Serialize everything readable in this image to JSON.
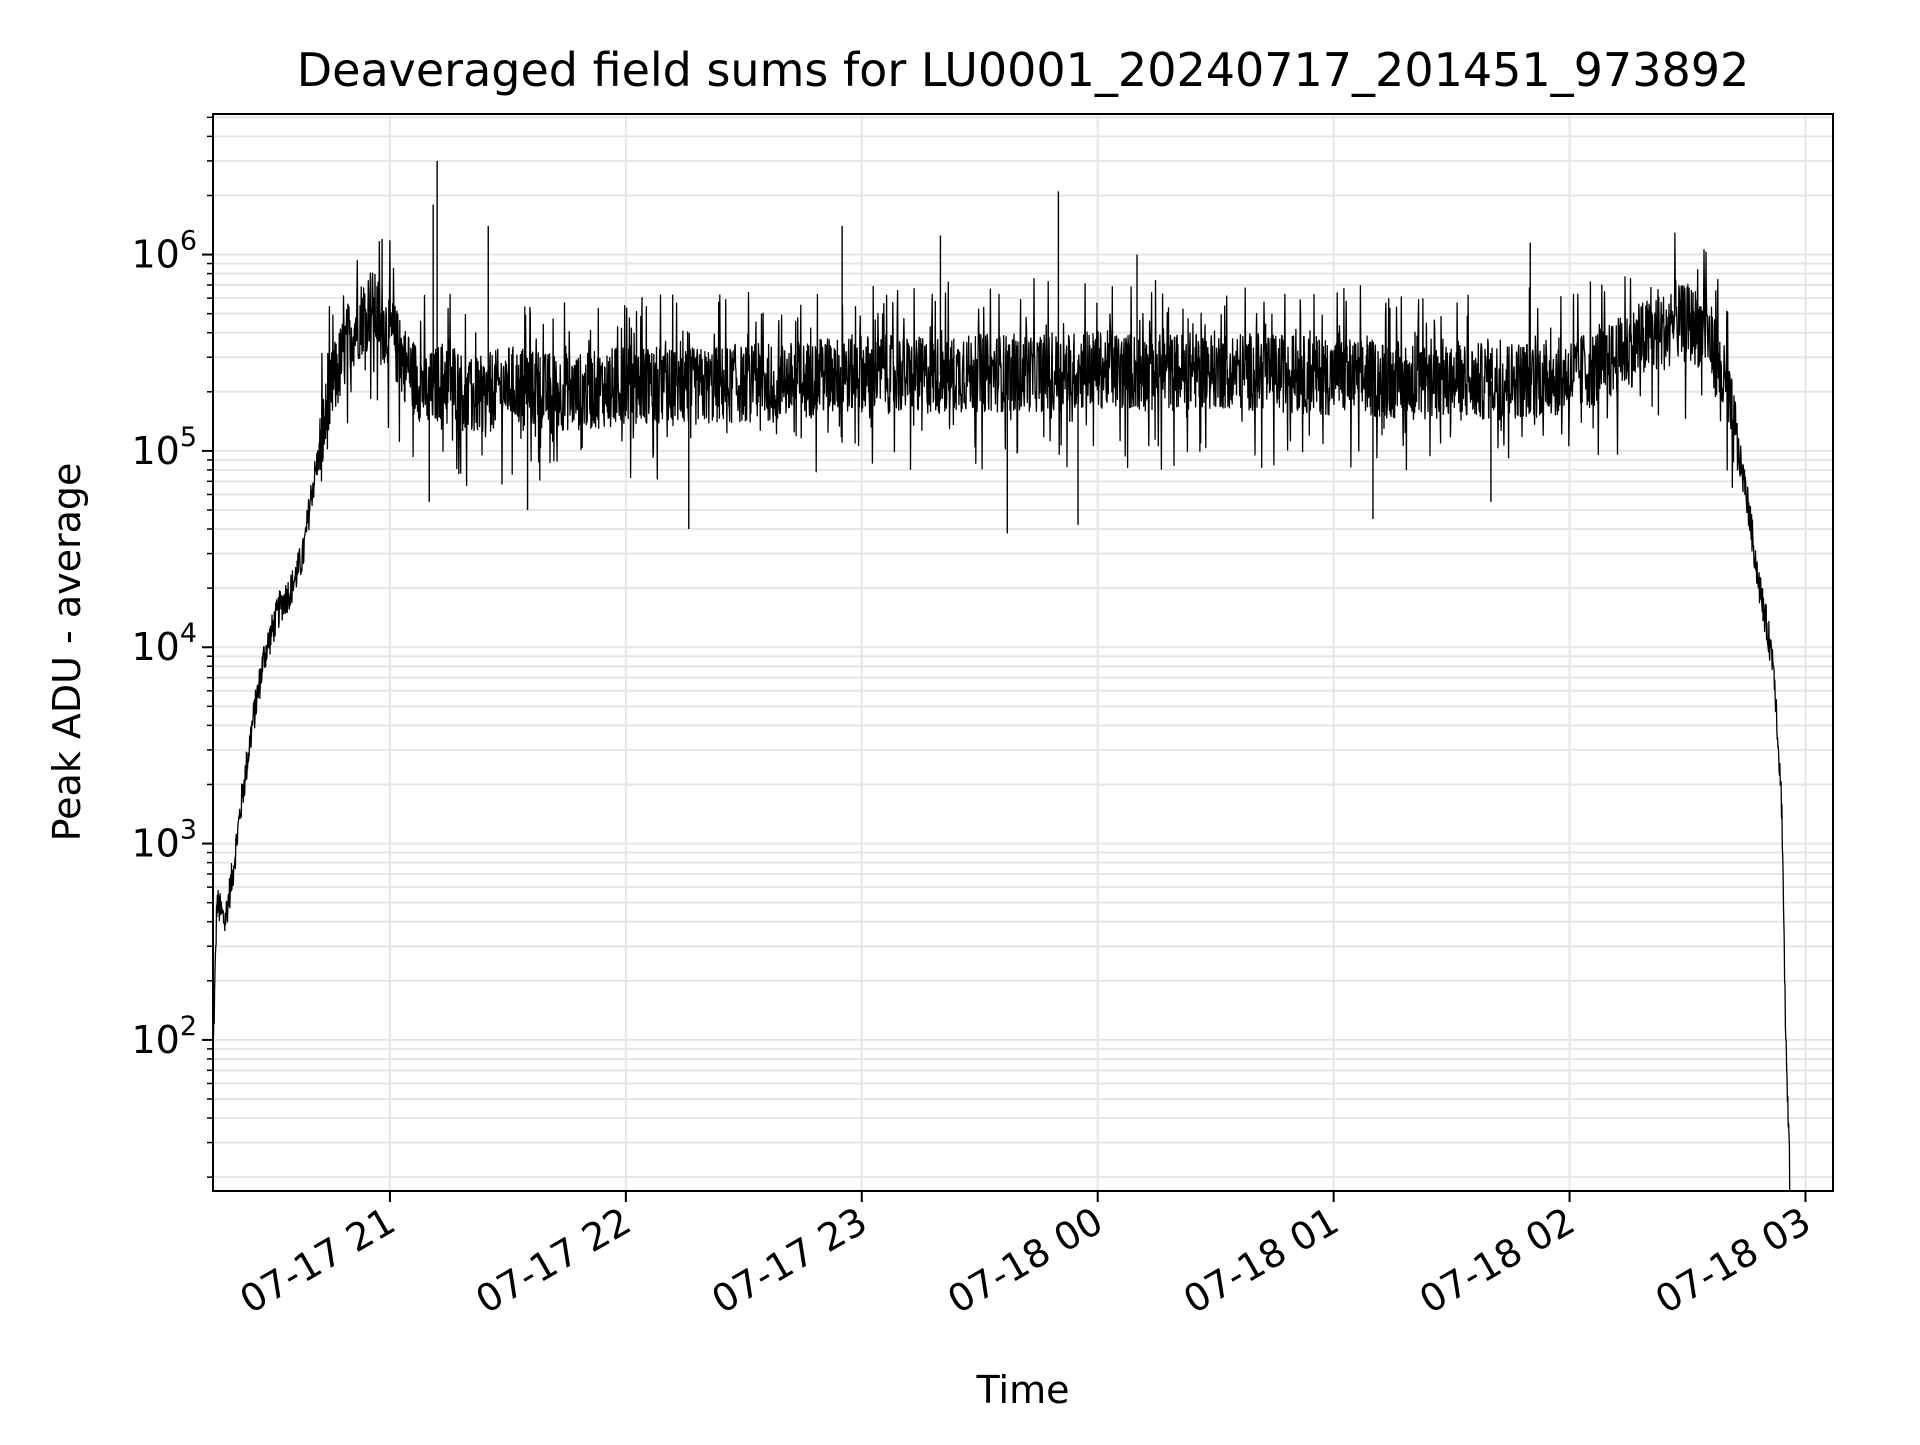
{
  "chart_data": {
    "type": "line",
    "title": "Deaveraged field sums for LU0001_20240717_201451_973892",
    "xlabel": "Time",
    "ylabel": "Peak ADU - average",
    "x_scale": "time",
    "y_scale": "log",
    "xlim": [
      "2024-07-17 20:15",
      "2024-07-18 03:07"
    ],
    "ylim": [
      17,
      5200000
    ],
    "grid": true,
    "x_ticks": [
      {
        "value": "2024-07-17 21:00",
        "label": "07-17 21"
      },
      {
        "value": "2024-07-17 22:00",
        "label": "07-17 22"
      },
      {
        "value": "2024-07-17 23:00",
        "label": "07-17 23"
      },
      {
        "value": "2024-07-18 00:00",
        "label": "07-18 00"
      },
      {
        "value": "2024-07-18 01:00",
        "label": "07-18 01"
      },
      {
        "value": "2024-07-18 02:00",
        "label": "07-18 02"
      },
      {
        "value": "2024-07-18 03:00",
        "label": "07-18 03"
      }
    ],
    "y_ticks": [
      {
        "value": 100,
        "base": "10",
        "exp": "2"
      },
      {
        "value": 1000,
        "base": "10",
        "exp": "3"
      },
      {
        "value": 10000,
        "base": "10",
        "exp": "4"
      },
      {
        "value": 100000,
        "base": "10",
        "exp": "5"
      },
      {
        "value": 1000000,
        "base": "10",
        "exp": "6"
      }
    ],
    "series": [
      {
        "color": "#000000",
        "x": [
          "2024-07-17 20:15",
          "2024-07-17 20:16",
          "2024-07-17 20:18",
          "2024-07-17 20:20",
          "2024-07-17 20:22",
          "2024-07-17 20:25",
          "2024-07-17 20:28",
          "2024-07-17 20:32",
          "2024-07-17 20:35",
          "2024-07-17 20:38",
          "2024-07-17 20:40",
          "2024-07-17 20:45",
          "2024-07-17 20:50",
          "2024-07-17 20:55",
          "2024-07-17 21:00",
          "2024-07-17 21:05",
          "2024-07-17 21:10",
          "2024-07-17 21:15",
          "2024-07-17 21:20",
          "2024-07-17 21:30",
          "2024-07-17 21:40",
          "2024-07-17 21:50",
          "2024-07-17 22:00",
          "2024-07-17 22:15",
          "2024-07-17 22:30",
          "2024-07-17 22:45",
          "2024-07-17 23:00",
          "2024-07-17 23:15",
          "2024-07-17 23:30",
          "2024-07-17 23:45",
          "2024-07-18 00:00",
          "2024-07-18 00:15",
          "2024-07-18 00:30",
          "2024-07-18 00:45",
          "2024-07-18 01:00",
          "2024-07-18 01:15",
          "2024-07-18 01:30",
          "2024-07-18 01:45",
          "2024-07-18 02:00",
          "2024-07-18 02:10",
          "2024-07-18 02:20",
          "2024-07-18 02:30",
          "2024-07-18 02:35",
          "2024-07-18 02:40",
          "2024-07-18 02:45",
          "2024-07-18 02:48",
          "2024-07-18 02:52",
          "2024-07-18 02:54",
          "2024-07-18 02:55",
          "2024-07-18 02:56"
        ],
        "y": [
          80,
          500,
          400,
          700,
          1500,
          4000,
          9000,
          16000,
          20000,
          30000,
          60000,
          200000,
          400000,
          550000,
          400000,
          250000,
          200000,
          250000,
          180000,
          220000,
          200000,
          200000,
          220000,
          210000,
          220000,
          230000,
          250000,
          240000,
          250000,
          250000,
          260000,
          250000,
          260000,
          250000,
          240000,
          230000,
          220000,
          230000,
          240000,
          280000,
          380000,
          450000,
          400000,
          200000,
          60000,
          22000,
          8000,
          1500,
          100,
          20
        ],
        "spikes": [
          {
            "x": "2024-07-17 21:12",
            "y": 3000000
          },
          {
            "x": "2024-07-17 21:11",
            "y": 1800000
          },
          {
            "x": "2024-07-17 21:25",
            "y": 1400000
          },
          {
            "x": "2024-07-17 20:58",
            "y": 1200000
          },
          {
            "x": "2024-07-17 22:55",
            "y": 1400000
          },
          {
            "x": "2024-07-17 23:50",
            "y": 2100000
          },
          {
            "x": "2024-07-17 23:20",
            "y": 1250000
          },
          {
            "x": "2024-07-18 00:10",
            "y": 1000000
          },
          {
            "x": "2024-07-18 01:50",
            "y": 1150000
          },
          {
            "x": "2024-07-17 21:10",
            "y": 55000
          },
          {
            "x": "2024-07-17 21:35",
            "y": 50000
          },
          {
            "x": "2024-07-17 22:16",
            "y": 40000
          },
          {
            "x": "2024-07-17 23:37",
            "y": 38000
          },
          {
            "x": "2024-07-17 23:55",
            "y": 42000
          },
          {
            "x": "2024-07-18 01:10",
            "y": 45000
          },
          {
            "x": "2024-07-18 01:40",
            "y": 55000
          }
        ]
      }
    ]
  }
}
